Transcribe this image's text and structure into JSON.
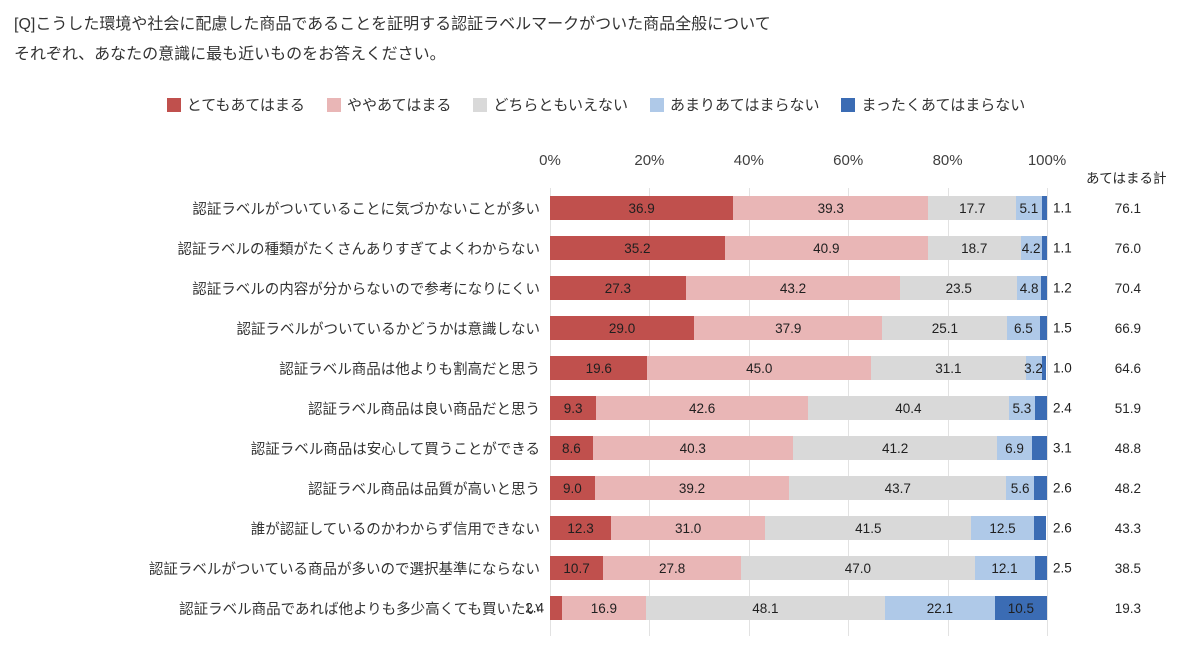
{
  "question": {
    "line1": "[Q]こうした環境や社会に配慮した商品であることを証明する認証ラベルマークがついた商品全般について",
    "line2": "それぞれ、あなたの意識に最も近いものをお答えください。"
  },
  "totals_header": "あてはまる計",
  "axis": {
    "ticks": [
      "0%",
      "20%",
      "40%",
      "60%",
      "80%",
      "100%"
    ]
  },
  "chart_data": {
    "type": "bar",
    "stacked": true,
    "orientation": "horizontal",
    "xlim": [
      0,
      100
    ],
    "categories": [
      "認証ラベルがついていることに気づかないことが多い",
      "認証ラベルの種類がたくさんありすぎてよくわからない",
      "認証ラベルの内容が分からないので参考になりにくい",
      "認証ラベルがついているかどうかは意識しない",
      "認証ラベル商品は他よりも割高だと思う",
      "認証ラベル商品は良い商品だと思う",
      "認証ラベル商品は安心して買うことができる",
      "認証ラベル商品は品質が高いと思う",
      "誰が認証しているのかわからず信用できない",
      "認証ラベルがついている商品が多いので選択基準にならない",
      "認証ラベル商品であれば他よりも多少高くても買いたい"
    ],
    "series": [
      {
        "name": "とてもあてはまる",
        "color": "#c0504d",
        "values": [
          36.9,
          35.2,
          27.3,
          29.0,
          19.6,
          9.3,
          8.6,
          9.0,
          12.3,
          10.7,
          2.4
        ]
      },
      {
        "name": "ややあてはまる",
        "color": "#e9b6b6",
        "values": [
          39.3,
          40.9,
          43.2,
          37.9,
          45.0,
          42.6,
          40.3,
          39.2,
          31.0,
          27.8,
          16.9
        ]
      },
      {
        "name": "どちらともいえない",
        "color": "#d9d9d9",
        "values": [
          17.7,
          18.7,
          23.5,
          25.1,
          31.1,
          40.4,
          41.2,
          43.7,
          41.5,
          47.0,
          48.1
        ]
      },
      {
        "name": "あまりあてはまらない",
        "color": "#afc9e8",
        "values": [
          5.1,
          4.2,
          4.8,
          6.5,
          3.2,
          5.3,
          6.9,
          5.6,
          12.5,
          12.1,
          22.1
        ]
      },
      {
        "name": "まったくあてはまらない",
        "color": "#3b6cb4",
        "values": [
          1.1,
          1.1,
          1.2,
          1.5,
          1.0,
          2.4,
          3.1,
          2.6,
          2.6,
          2.5,
          10.5
        ]
      }
    ],
    "totals": [
      76.1,
      76.0,
      70.4,
      66.9,
      64.6,
      51.9,
      48.8,
      48.2,
      43.3,
      38.5,
      19.3
    ]
  }
}
